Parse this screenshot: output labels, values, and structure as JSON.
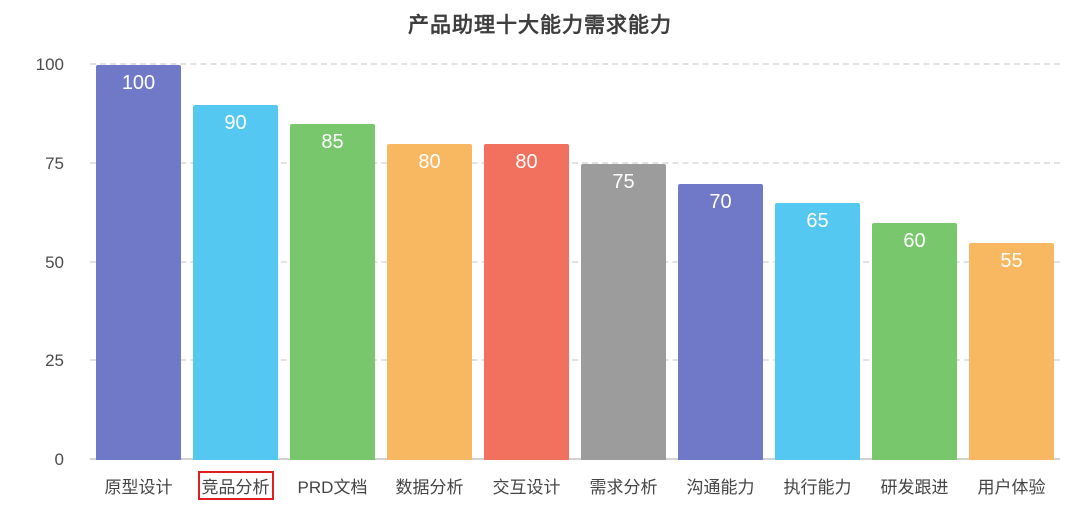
{
  "chart_data": {
    "type": "bar",
    "title": "产品助理十大能力需求能力",
    "categories": [
      "原型设计",
      "竞品分析",
      "PRD文档",
      "数据分析",
      "交互设计",
      "需求分析",
      "沟通能力",
      "执行能力",
      "研发跟进",
      "用户体验"
    ],
    "values": [
      100,
      90,
      85,
      80,
      80,
      75,
      70,
      65,
      60,
      55
    ],
    "bar_colors": [
      "#7079c8",
      "#54c8f0",
      "#79c76d",
      "#f8b862",
      "#f2705e",
      "#9c9c9c",
      "#7079c8",
      "#54c8f0",
      "#79c76d",
      "#f8b862"
    ],
    "xlabel": "",
    "ylabel": "",
    "ylim": [
      0,
      100
    ],
    "yticks": [
      0,
      25,
      50,
      75,
      100
    ],
    "grid": true,
    "grid_style": "dashed",
    "legend": "none",
    "value_label_color": "#ffffff",
    "background": "#ffffff",
    "title_color": "#3e3e3e",
    "axis_tick_color": "#4c4c4c",
    "highlighted_category_index": 1,
    "highlight_box_color": "#e01e1e"
  }
}
